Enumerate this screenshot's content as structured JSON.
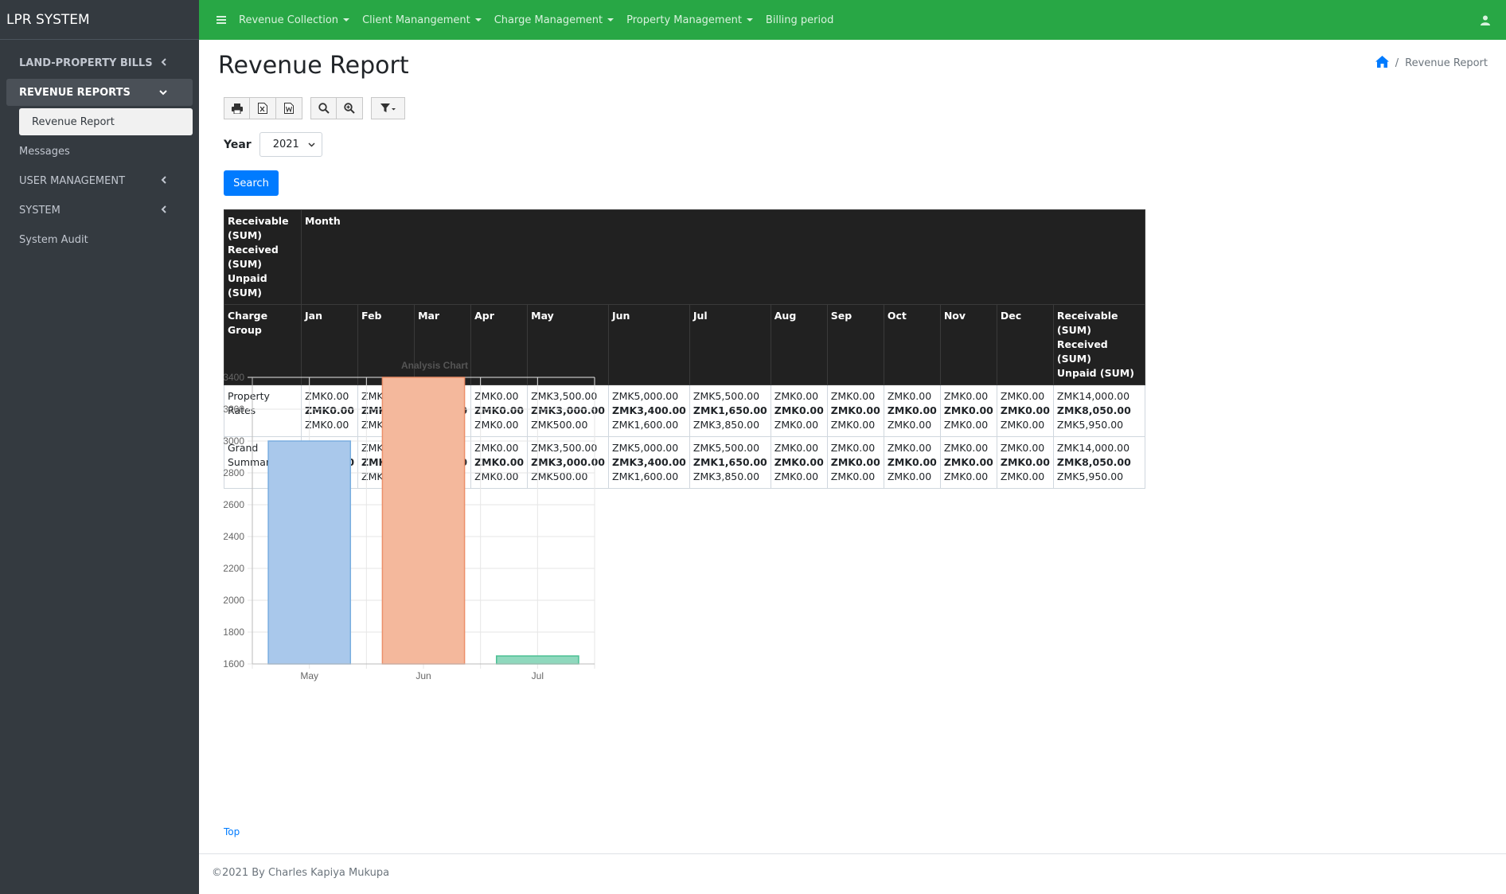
{
  "app": {
    "brand": "LPR SYSTEM"
  },
  "sidebar": {
    "items": [
      {
        "label": "LAND-PROPERTY BILLS",
        "bold": true
      },
      {
        "label": "REVENUE REPORTS",
        "bold": true
      },
      {
        "label": "Revenue Report"
      },
      {
        "label": "Messages"
      },
      {
        "label": "USER MANAGEMENT"
      },
      {
        "label": "SYSTEM"
      },
      {
        "label": "System Audit"
      }
    ]
  },
  "topnav": {
    "items": [
      "Revenue Collection",
      "Client Manangement",
      "Charge Management",
      "Property Management",
      "Billing period"
    ]
  },
  "page": {
    "title": "Revenue Report",
    "breadcrumb_current": "Revenue Report",
    "breadcrumb_sep": "/"
  },
  "filters": {
    "year_label": "Year",
    "year_value": "2021",
    "search_label": "Search"
  },
  "table": {
    "corner_lines": [
      "Receivable (SUM)",
      "Received (SUM)",
      "Unpaid (SUM)"
    ],
    "month_header": "Month",
    "group_header": "Charge Group",
    "months": [
      "Jan",
      "Feb",
      "Mar",
      "Apr",
      "May",
      "Jun",
      "Jul",
      "Aug",
      "Sep",
      "Oct",
      "Nov",
      "Dec"
    ],
    "total_header": [
      "Receivable (SUM)",
      "Received (SUM)",
      "Unpaid (SUM)"
    ],
    "rows": [
      {
        "group": "Property Rates",
        "cells": [
          [
            "ZMK0.00",
            "ZMK0.00",
            "ZMK0.00"
          ],
          [
            "ZMK0.00",
            "ZMK0.00",
            "ZMK0.00"
          ],
          [
            "ZMK0.00",
            "ZMK0.00",
            "ZMK0.00"
          ],
          [
            "ZMK0.00",
            "ZMK0.00",
            "ZMK0.00"
          ],
          [
            "ZMK3,500.00",
            "ZMK3,000.00",
            "ZMK500.00"
          ],
          [
            "ZMK5,000.00",
            "ZMK3,400.00",
            "ZMK1,600.00"
          ],
          [
            "ZMK5,500.00",
            "ZMK1,650.00",
            "ZMK3,850.00"
          ],
          [
            "ZMK0.00",
            "ZMK0.00",
            "ZMK0.00"
          ],
          [
            "ZMK0.00",
            "ZMK0.00",
            "ZMK0.00"
          ],
          [
            "ZMK0.00",
            "ZMK0.00",
            "ZMK0.00"
          ],
          [
            "ZMK0.00",
            "ZMK0.00",
            "ZMK0.00"
          ],
          [
            "ZMK0.00",
            "ZMK0.00",
            "ZMK0.00"
          ],
          [
            "ZMK14,000.00",
            "ZMK8,050.00",
            "ZMK5,950.00"
          ]
        ]
      },
      {
        "group": "Grand Summary",
        "cells": [
          [
            "ZMK0.00",
            "ZMK0.00",
            "ZMK0.00"
          ],
          [
            "ZMK0.00",
            "ZMK0.00",
            "ZMK0.00"
          ],
          [
            "ZMK0.00",
            "ZMK0.00",
            "ZMK0.00"
          ],
          [
            "ZMK0.00",
            "ZMK0.00",
            "ZMK0.00"
          ],
          [
            "ZMK3,500.00",
            "ZMK3,000.00",
            "ZMK500.00"
          ],
          [
            "ZMK5,000.00",
            "ZMK3,400.00",
            "ZMK1,600.00"
          ],
          [
            "ZMK5,500.00",
            "ZMK1,650.00",
            "ZMK3,850.00"
          ],
          [
            "ZMK0.00",
            "ZMK0.00",
            "ZMK0.00"
          ],
          [
            "ZMK0.00",
            "ZMK0.00",
            "ZMK0.00"
          ],
          [
            "ZMK0.00",
            "ZMK0.00",
            "ZMK0.00"
          ],
          [
            "ZMK0.00",
            "ZMK0.00",
            "ZMK0.00"
          ],
          [
            "ZMK0.00",
            "ZMK0.00",
            "ZMK0.00"
          ],
          [
            "ZMK14,000.00",
            "ZMK8,050.00",
            "ZMK5,950.00"
          ]
        ]
      }
    ]
  },
  "chart_data": {
    "type": "bar",
    "title": "Analysis Chart",
    "categories": [
      "May",
      "Jun",
      "Jul"
    ],
    "values": [
      3000,
      3400,
      1650
    ],
    "ylim": [
      1600,
      3400
    ],
    "yticks": [
      1600,
      1800,
      2000,
      2200,
      2400,
      2600,
      2800,
      3000,
      3200,
      3400
    ],
    "bar_fills": [
      "#a9c8eb",
      "#f4b89c",
      "#8fd8bd"
    ],
    "bar_strokes": [
      "#7aaee0",
      "#ec8f6a",
      "#4cbf94"
    ],
    "grid": true
  },
  "links": {
    "top": "Top"
  },
  "footer": {
    "text": "©2021 By Charles Kapiya Mukupa"
  },
  "colors": {
    "topbar": "#28a745",
    "sidebar": "#343a40",
    "primary": "#007bff",
    "table_header": "#212121"
  }
}
